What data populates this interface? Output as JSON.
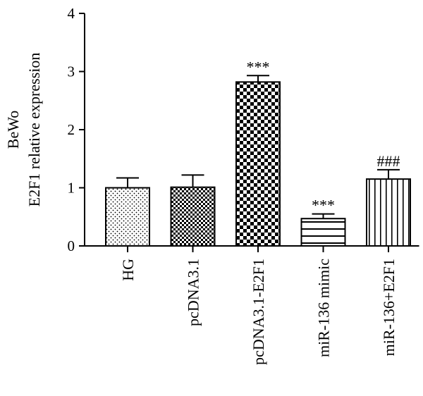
{
  "chart_data": {
    "type": "bar",
    "ylabel_line1": "BeWo",
    "ylabel_line2": "E2F1 relative expression",
    "ylim": [
      0,
      4
    ],
    "yticks": [
      "0",
      "1",
      "2",
      "3",
      "4"
    ],
    "grid": false,
    "legend": "none",
    "categories": [
      "HG",
      "pcDNA3.1",
      "pcDNA3.1-E2F1",
      "miR-136 mimic",
      "miR-136+E2F1"
    ],
    "values": [
      1.0,
      1.01,
      2.82,
      0.47,
      1.15
    ],
    "errors": [
      0.17,
      0.21,
      0.11,
      0.08,
      0.16
    ],
    "annotations": [
      "",
      "",
      "***",
      "***",
      "###"
    ],
    "patterns": [
      "dots",
      "small-checker",
      "large-checker",
      "horizontal-lines",
      "vertical-lines"
    ],
    "bar_color": "#000000"
  }
}
